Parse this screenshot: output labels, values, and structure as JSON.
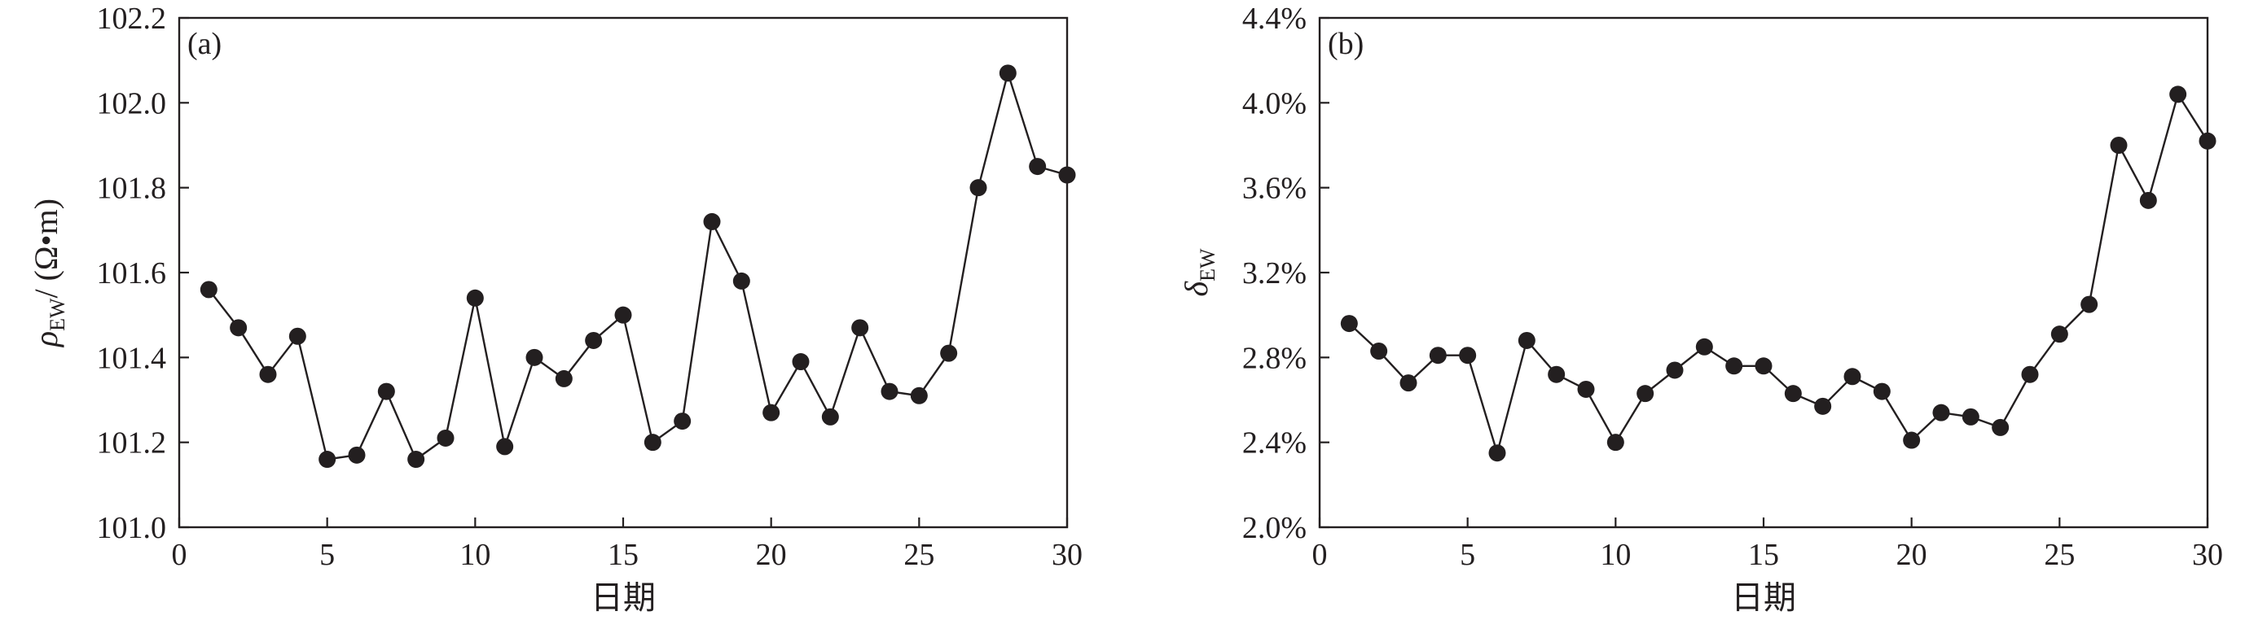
{
  "chart_data": [
    {
      "type": "line",
      "panel_label": "(a)",
      "xlabel": "日期",
      "ylabel_symbol": "ρ",
      "ylabel_subscript": "EW",
      "ylabel_unit": "/ (Ω•m)",
      "xlim": [
        0,
        30
      ],
      "ylim": [
        101.0,
        102.2
      ],
      "xticks": [
        0,
        5,
        10,
        15,
        20,
        25,
        30
      ],
      "yticks": [
        101.0,
        101.2,
        101.4,
        101.6,
        101.8,
        102.0,
        102.2
      ],
      "ytick_labels": [
        "101.0",
        "101.2",
        "101.4",
        "101.6",
        "101.8",
        "102.0",
        "102.2"
      ],
      "x": [
        1,
        2,
        3,
        4,
        5,
        6,
        7,
        8,
        9,
        10,
        11,
        12,
        13,
        14,
        15,
        16,
        17,
        18,
        19,
        20,
        21,
        22,
        23,
        24,
        25,
        26,
        27,
        28,
        29,
        30
      ],
      "y": [
        101.56,
        101.47,
        101.36,
        101.45,
        101.16,
        101.17,
        101.32,
        101.16,
        101.21,
        101.54,
        101.19,
        101.4,
        101.35,
        101.44,
        101.5,
        101.2,
        101.25,
        101.72,
        101.58,
        101.27,
        101.39,
        101.26,
        101.47,
        101.32,
        101.31,
        101.41,
        101.8,
        102.07,
        101.85,
        101.83
      ],
      "marker": "filled-circle",
      "color": "#231f20"
    },
    {
      "type": "line",
      "panel_label": "(b)",
      "xlabel": "日期",
      "ylabel_symbol": "δ",
      "ylabel_subscript": "EW",
      "ylabel_unit": "",
      "xlim": [
        0,
        30
      ],
      "ylim": [
        0.02,
        0.044
      ],
      "xticks": [
        0,
        5,
        10,
        15,
        20,
        25,
        30
      ],
      "yticks": [
        0.02,
        0.024,
        0.028,
        0.032,
        0.036,
        0.04,
        0.044
      ],
      "ytick_labels": [
        "2.0%",
        "2.4%",
        "2.8%",
        "3.2%",
        "3.6%",
        "4.0%",
        "4.4%"
      ],
      "x": [
        1,
        2,
        3,
        4,
        5,
        6,
        7,
        8,
        9,
        10,
        11,
        12,
        13,
        14,
        15,
        16,
        17,
        18,
        19,
        20,
        21,
        22,
        23,
        24,
        25,
        26,
        27,
        28,
        29,
        30
      ],
      "y": [
        0.0296,
        0.0283,
        0.0268,
        0.0281,
        0.0281,
        0.0235,
        0.0288,
        0.0272,
        0.0265,
        0.024,
        0.0263,
        0.0274,
        0.0285,
        0.0276,
        0.0276,
        0.0263,
        0.0257,
        0.0271,
        0.0264,
        0.0241,
        0.0254,
        0.0252,
        0.0247,
        0.0272,
        0.0291,
        0.0305,
        0.038,
        0.0354,
        0.0404,
        0.0382
      ],
      "marker": "filled-circle",
      "color": "#231f20"
    }
  ]
}
